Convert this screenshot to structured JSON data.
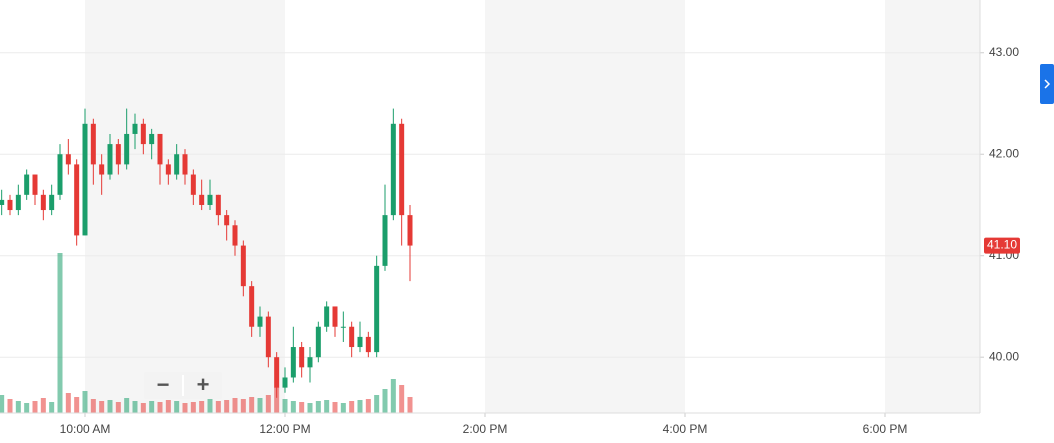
{
  "chart_data": {
    "type": "candlestick",
    "x": [
      550,
      555,
      560,
      565,
      570,
      575,
      580,
      585,
      590,
      595,
      600,
      605,
      610,
      615,
      620,
      625,
      630,
      635,
      640,
      645,
      650,
      655,
      660,
      665,
      670,
      675,
      680,
      685,
      690,
      695,
      700,
      705,
      710,
      715,
      720,
      725,
      730,
      735,
      740,
      745,
      750,
      755,
      760,
      765,
      770,
      775,
      780,
      785,
      790,
      795
    ],
    "open": [
      41.5,
      41.55,
      41.45,
      41.6,
      41.8,
      41.6,
      41.45,
      41.6,
      42.0,
      41.9,
      41.2,
      42.3,
      41.9,
      41.8,
      42.1,
      41.9,
      42.2,
      42.3,
      42.1,
      42.2,
      41.9,
      41.8,
      42.0,
      41.8,
      41.6,
      41.5,
      41.6,
      41.4,
      41.3,
      41.1,
      40.7,
      40.3,
      40.4,
      40.0,
      39.7,
      39.8,
      40.1,
      39.9,
      40.0,
      40.3,
      40.5,
      40.3,
      40.3,
      40.1,
      40.2,
      40.05,
      40.9,
      41.4,
      42.3,
      41.4
    ],
    "high": [
      41.65,
      41.6,
      41.7,
      41.85,
      41.8,
      41.65,
      41.7,
      42.1,
      42.15,
      41.95,
      42.45,
      42.35,
      42.0,
      42.2,
      42.15,
      42.45,
      42.4,
      42.35,
      42.25,
      42.2,
      41.95,
      42.1,
      42.05,
      41.85,
      41.75,
      41.75,
      41.6,
      41.45,
      41.35,
      41.15,
      40.75,
      40.5,
      40.45,
      40.05,
      39.9,
      40.3,
      40.15,
      40.1,
      40.35,
      40.55,
      40.5,
      40.45,
      40.35,
      40.35,
      40.25,
      41.0,
      41.7,
      42.45,
      42.35,
      41.5
    ],
    "low": [
      41.4,
      41.4,
      41.4,
      41.55,
      41.5,
      41.35,
      41.4,
      41.55,
      41.8,
      41.1,
      41.2,
      41.7,
      41.6,
      41.75,
      41.8,
      41.85,
      42.05,
      42.0,
      41.95,
      41.7,
      41.7,
      41.75,
      41.7,
      41.5,
      41.45,
      41.45,
      41.3,
      41.15,
      41.0,
      40.6,
      40.2,
      40.2,
      39.9,
      39.6,
      39.65,
      39.75,
      39.8,
      39.75,
      39.95,
      40.25,
      40.2,
      40.15,
      40.0,
      40.05,
      40.0,
      40.0,
      40.85,
      41.35,
      41.1,
      40.75
    ],
    "close": [
      41.55,
      41.45,
      41.6,
      41.8,
      41.6,
      41.45,
      41.6,
      42.0,
      41.9,
      41.2,
      42.3,
      41.9,
      41.8,
      42.1,
      41.9,
      42.2,
      42.3,
      42.1,
      42.2,
      41.9,
      41.8,
      42.0,
      41.8,
      41.6,
      41.5,
      41.6,
      41.4,
      41.3,
      41.1,
      40.7,
      40.3,
      40.4,
      40.0,
      39.7,
      39.8,
      40.1,
      39.9,
      40.0,
      40.3,
      40.5,
      40.3,
      40.3,
      40.1,
      40.2,
      40.05,
      40.9,
      41.4,
      42.3,
      41.4,
      41.1
    ],
    "volume": [
      18,
      14,
      12,
      10,
      12,
      15,
      11,
      160,
      20,
      16,
      22,
      14,
      12,
      13,
      11,
      15,
      12,
      10,
      12,
      11,
      13,
      12,
      10,
      11,
      12,
      14,
      12,
      13,
      15,
      14,
      16,
      15,
      18,
      26,
      14,
      12,
      11,
      10,
      12,
      13,
      11,
      10,
      12,
      13,
      14,
      18,
      24,
      34,
      28,
      16
    ],
    "up_color": "#1b9e6b",
    "down_color": "#e53935",
    "xlim": [
      549,
      1137
    ],
    "xticks": [
      {
        "value": 600,
        "label": "10:00 AM"
      },
      {
        "value": 720,
        "label": "12:00 PM"
      },
      {
        "value": 840,
        "label": "2:00 PM"
      },
      {
        "value": 960,
        "label": "4:00 PM"
      },
      {
        "value": 1080,
        "label": "6:00 PM"
      }
    ],
    "ylim": [
      39.45,
      43.52
    ],
    "yticks": [
      {
        "value": 40,
        "label": "40.00"
      },
      {
        "value": 41,
        "label": "41.00"
      },
      {
        "value": 42,
        "label": "42.00"
      },
      {
        "value": 43,
        "label": "43.00"
      }
    ],
    "last_price": {
      "value": 41.1,
      "label": "41.10"
    },
    "grid": true
  },
  "controls": {
    "zoom_out": "−",
    "zoom_in": "+"
  }
}
